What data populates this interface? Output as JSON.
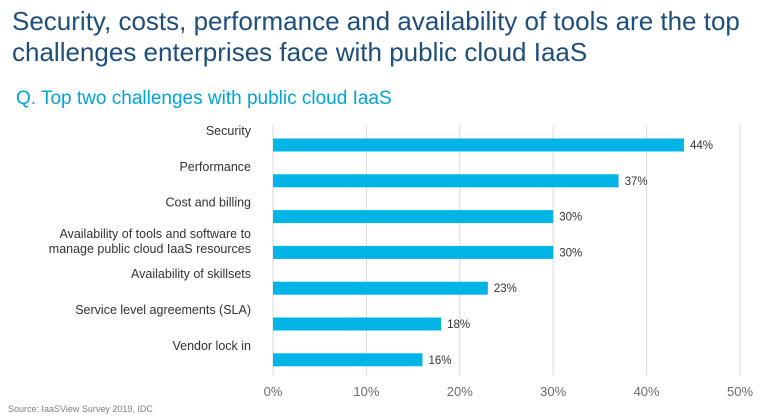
{
  "title": "Security, costs, performance and availability of tools are the top challenges enterprises face with public cloud IaaS",
  "subtitle": "Q. Top two challenges with public cloud IaaS",
  "source": "Source: IaaSView Survey 2019, IDC",
  "colors": {
    "bar": "#00b4e6",
    "title": "#1f4e79",
    "subtitle": "#00a3d9"
  },
  "chart_data": {
    "type": "bar",
    "orientation": "horizontal",
    "categories": [
      [
        "Security"
      ],
      [
        "Performance"
      ],
      [
        "Cost and billing"
      ],
      [
        "Availability of tools and software to",
        "manage public cloud IaaS resources"
      ],
      [
        "Availability of skillsets"
      ],
      [
        "Service level agreements (SLA)"
      ],
      [
        "Vendor lock in"
      ]
    ],
    "values": [
      44,
      37,
      30,
      30,
      23,
      18,
      16
    ],
    "value_labels": [
      "44%",
      "37%",
      "30%",
      "30%",
      "23%",
      "18%",
      "16%"
    ],
    "xlim": [
      0,
      50
    ],
    "xticks": [
      "0%",
      "10%",
      "20%",
      "30%",
      "40%",
      "50%"
    ],
    "grid": "vertical"
  }
}
